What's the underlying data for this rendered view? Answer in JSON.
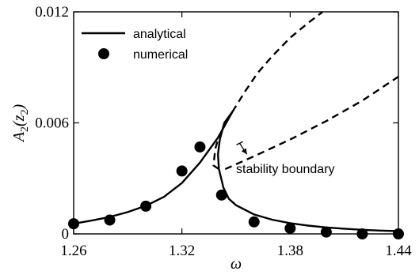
{
  "chart_data": {
    "type": "line",
    "title": "",
    "xlabel": "ω",
    "ylabel": {
      "main": "A",
      "sub1": "2",
      "mid": "(z",
      "sub2": "2",
      "close": ")"
    },
    "xlim": [
      1.26,
      1.44
    ],
    "ylim": [
      0,
      0.012
    ],
    "x_ticks": [
      1.26,
      1.32,
      1.38,
      1.44
    ],
    "x_tick_labels": [
      "1.26",
      "1.32",
      "1.38",
      "1.44"
    ],
    "y_ticks": [
      0,
      0.006,
      0.012
    ],
    "y_tick_labels": [
      "0",
      "0.006",
      "0.012"
    ],
    "grid": false,
    "legend_position": "top-left",
    "legend": [
      {
        "label": "analytical",
        "style": "solid-line"
      },
      {
        "label": "numerical",
        "style": "filled-circle"
      }
    ],
    "series": [
      {
        "name": "analytical",
        "style": "solid",
        "points": [
          [
            1.26,
            0.00055
          ],
          [
            1.27,
            0.00072
          ],
          [
            1.28,
            0.00092
          ],
          [
            1.29,
            0.00118
          ],
          [
            1.3,
            0.00152
          ],
          [
            1.31,
            0.002
          ],
          [
            1.32,
            0.00275
          ],
          [
            1.33,
            0.00385
          ],
          [
            1.34,
            0.0052
          ],
          [
            1.348,
            0.0066
          ],
          [
            1.3435,
            0.006
          ],
          [
            1.341,
            0.0051
          ],
          [
            1.34,
            0.0043
          ],
          [
            1.3405,
            0.0035
          ],
          [
            1.343,
            0.0025
          ],
          [
            1.346,
            0.0019
          ],
          [
            1.35,
            0.00155
          ],
          [
            1.36,
            0.00105
          ],
          [
            1.37,
            0.00077
          ],
          [
            1.38,
            0.00058
          ],
          [
            1.39,
            0.00045
          ],
          [
            1.4,
            0.00035
          ],
          [
            1.41,
            0.00028
          ],
          [
            1.42,
            0.00022
          ],
          [
            1.43,
            0.00018
          ],
          [
            1.44,
            0.00015
          ]
        ]
      },
      {
        "name": "unstable-branch",
        "style": "dashed",
        "points": [
          [
            1.348,
            0.0066
          ],
          [
            1.355,
            0.0077
          ],
          [
            1.362,
            0.0087
          ],
          [
            1.37,
            0.0096
          ],
          [
            1.38,
            0.0106
          ],
          [
            1.39,
            0.0114
          ],
          [
            1.398,
            0.012
          ]
        ]
      },
      {
        "name": "stability-boundary",
        "style": "dashed",
        "points": [
          [
            1.3405,
            0.0035
          ],
          [
            1.3375,
            0.0037
          ],
          [
            1.3385,
            0.0046
          ],
          [
            1.34,
            0.0051
          ]
        ]
      },
      {
        "name": "stability-boundary-upper",
        "style": "dashed",
        "points": [
          [
            1.344,
            0.0035
          ],
          [
            1.36,
            0.0042
          ],
          [
            1.38,
            0.0051
          ],
          [
            1.4,
            0.0061
          ],
          [
            1.42,
            0.0072
          ],
          [
            1.44,
            0.0085
          ]
        ]
      },
      {
        "name": "numerical",
        "style": "markers",
        "points": [
          [
            1.26,
            0.00055
          ],
          [
            1.28,
            0.00075
          ],
          [
            1.3,
            0.0015
          ],
          [
            1.32,
            0.0034
          ],
          [
            1.33,
            0.0047
          ],
          [
            1.342,
            0.0021
          ],
          [
            1.36,
            0.00065
          ],
          [
            1.38,
            0.0003
          ],
          [
            1.4,
            0.0001
          ],
          [
            1.42,
            0.0
          ],
          [
            1.44,
            0.0
          ]
        ]
      }
    ],
    "annotation": {
      "text": "stability boundary",
      "arrow_from": [
        1.352,
        0.0049
      ],
      "arrow_to": [
        1.356,
        0.0043
      ],
      "text_at": [
        1.35,
        0.0035
      ]
    }
  }
}
